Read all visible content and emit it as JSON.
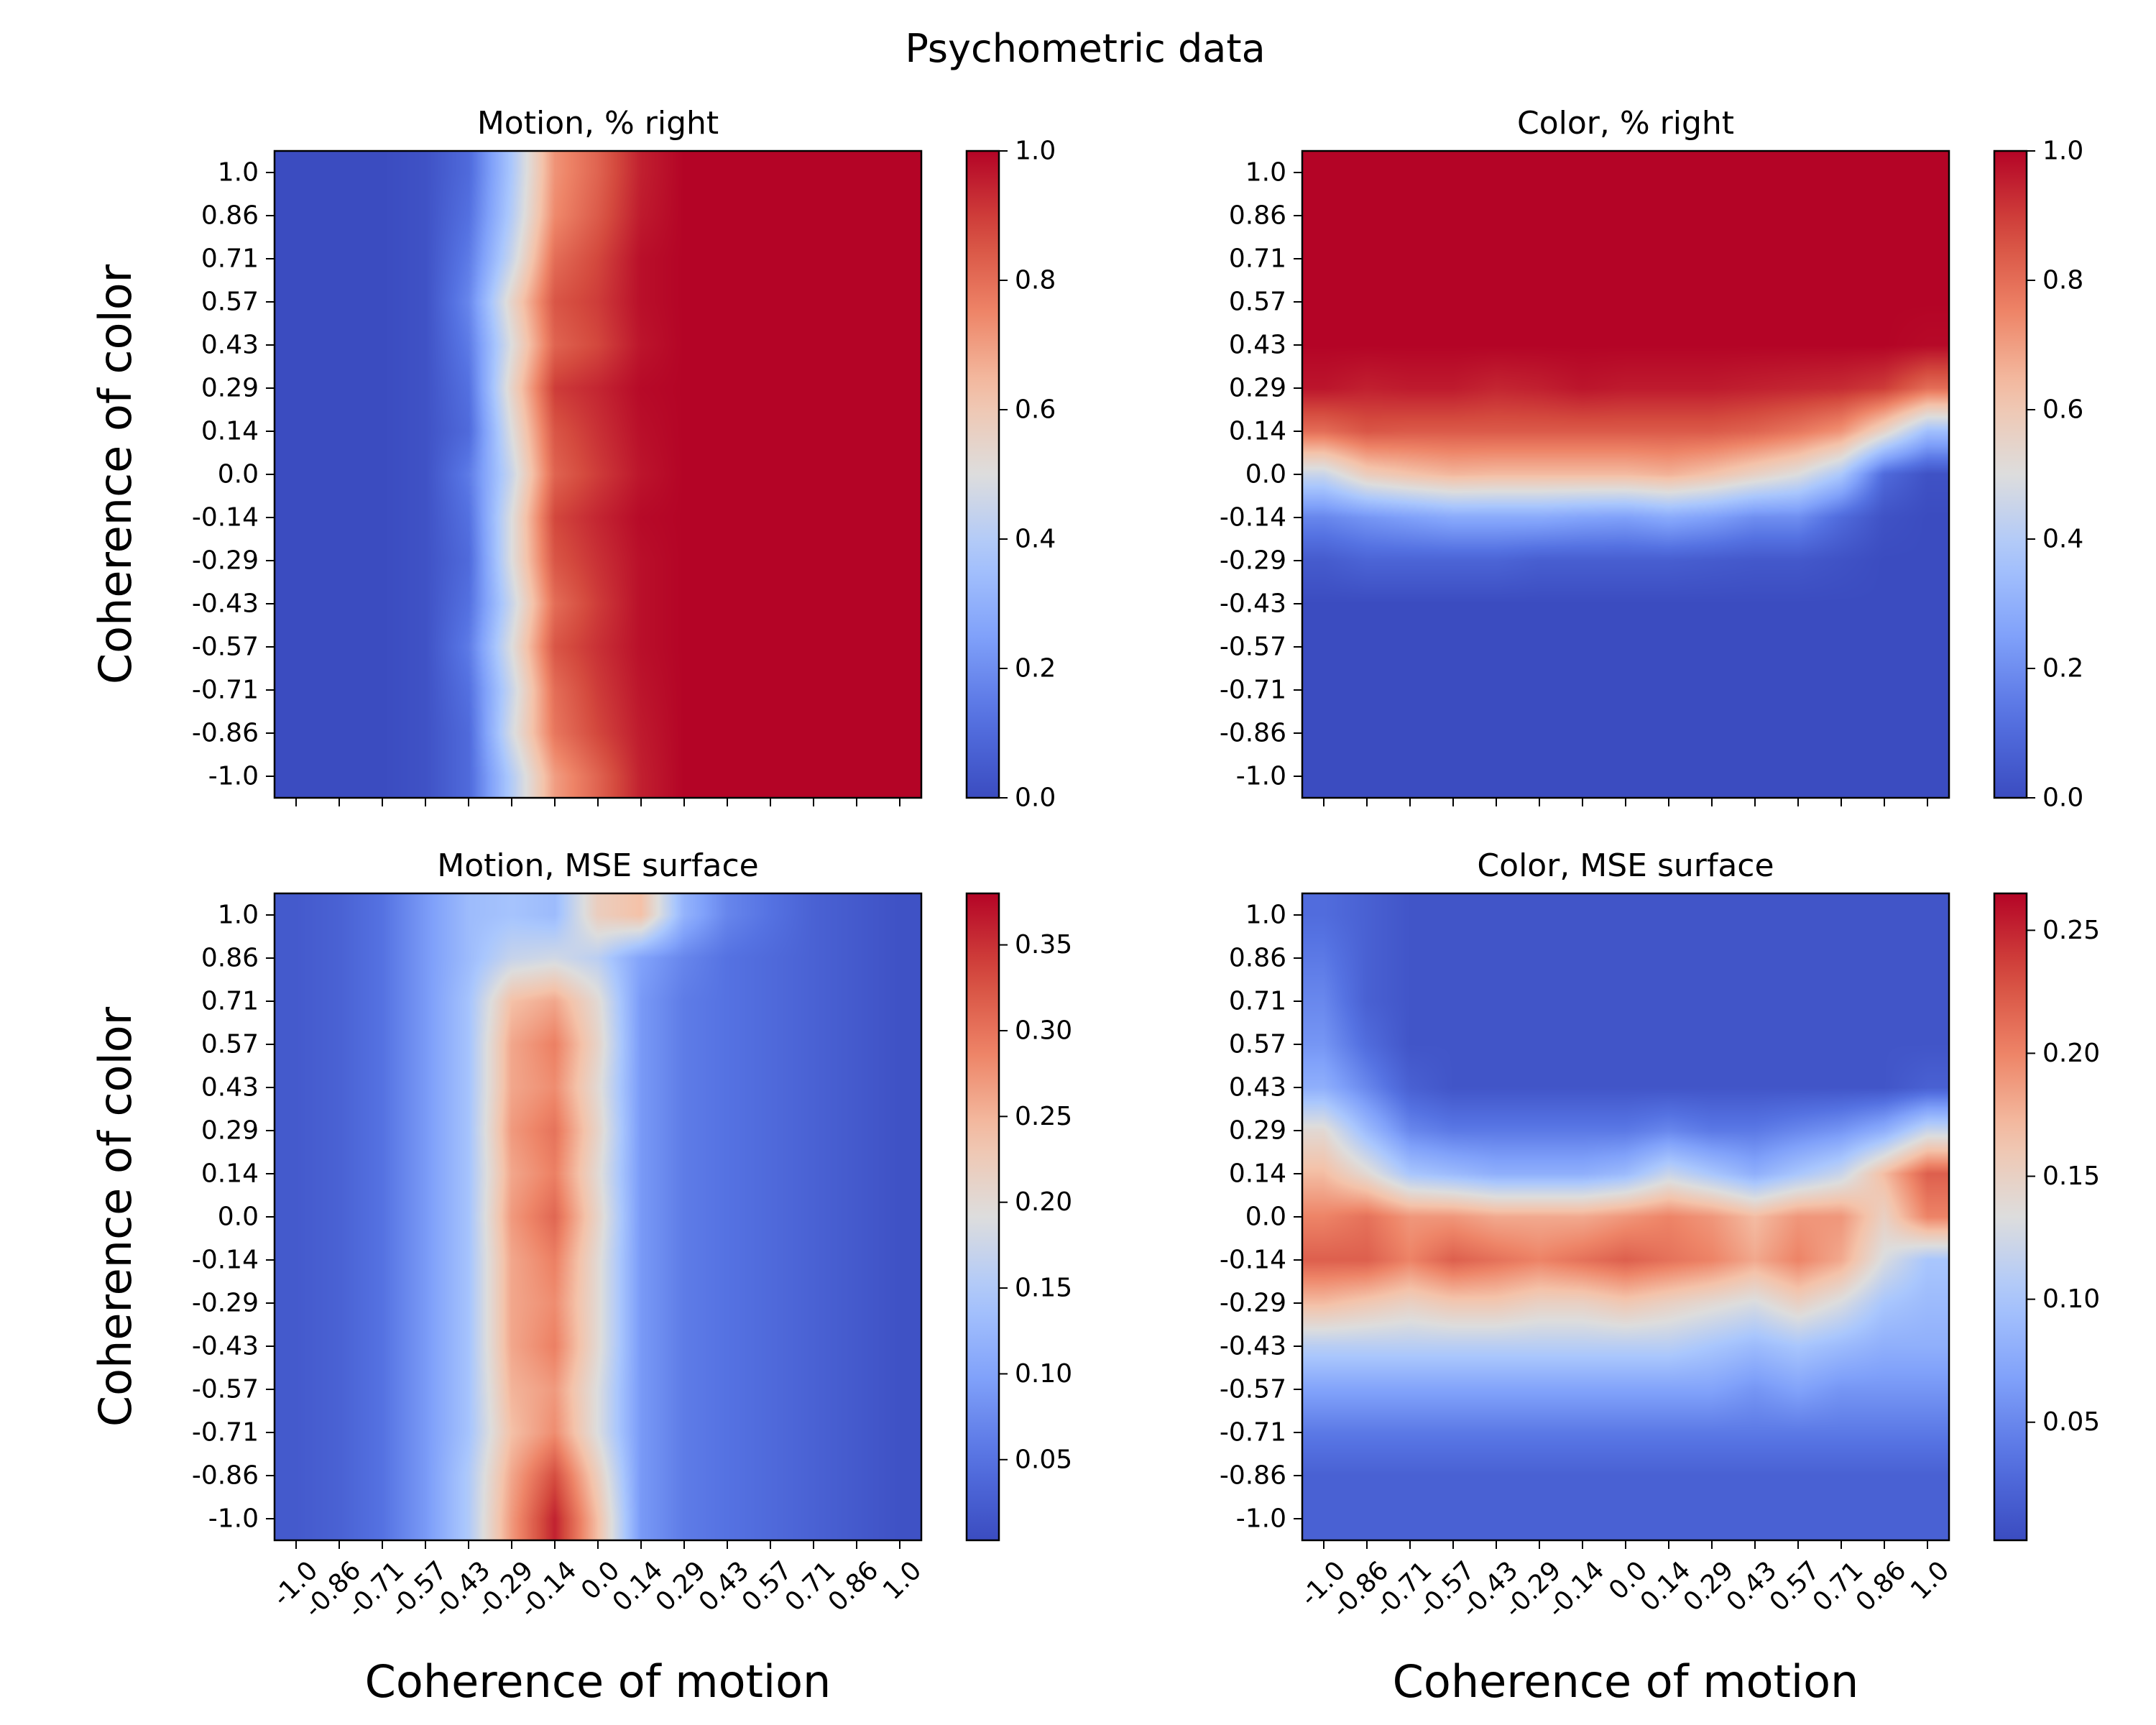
{
  "figure": {
    "title": "Psychometric data"
  },
  "chart_data": [
    {
      "type": "heatmap",
      "panel": "top-left",
      "title": "Motion, % right",
      "xlabel": "",
      "ylabel": "Coherence of color",
      "x_ticks": [
        "-1.0",
        "-0.86",
        "-0.71",
        "-0.57",
        "-0.43",
        "-0.29",
        "-0.14",
        "0.0",
        "0.14",
        "0.29",
        "0.43",
        "0.57",
        "0.71",
        "0.86",
        "1.0"
      ],
      "y_ticks": [
        "1.0",
        "0.86",
        "0.71",
        "0.57",
        "0.43",
        "0.29",
        "0.14",
        "0.0",
        "-0.14",
        "-0.29",
        "-0.43",
        "-0.57",
        "-0.71",
        "-0.86",
        "-1.0"
      ],
      "show_x_ticklabels": false,
      "colorbar": {
        "range": [
          0.0,
          1.0
        ],
        "ticks": [
          "0.0",
          "0.2",
          "0.4",
          "0.6",
          "0.8",
          "1.0"
        ],
        "colormap": "coolwarm"
      },
      "rows": [
        [
          0.0,
          0.0,
          0.0,
          0.02,
          0.1,
          0.38,
          0.72,
          0.82,
          0.95,
          1.0,
          1.0,
          1.0,
          1.0,
          1.0,
          1.0
        ],
        [
          0.0,
          0.0,
          0.0,
          0.02,
          0.12,
          0.4,
          0.74,
          0.84,
          0.96,
          1.0,
          1.0,
          1.0,
          1.0,
          1.0,
          1.0
        ],
        [
          0.0,
          0.0,
          0.0,
          0.02,
          0.15,
          0.45,
          0.8,
          0.88,
          0.98,
          1.0,
          1.0,
          1.0,
          1.0,
          1.0,
          1.0
        ],
        [
          0.0,
          0.0,
          0.0,
          0.02,
          0.18,
          0.55,
          0.85,
          0.9,
          0.98,
          1.0,
          1.0,
          1.0,
          1.0,
          1.0,
          1.0
        ],
        [
          0.0,
          0.0,
          0.0,
          0.02,
          0.15,
          0.5,
          0.82,
          0.88,
          0.97,
          1.0,
          1.0,
          1.0,
          1.0,
          1.0,
          1.0
        ],
        [
          0.0,
          0.0,
          0.0,
          0.02,
          0.12,
          0.55,
          0.9,
          0.94,
          0.99,
          1.0,
          1.0,
          1.0,
          1.0,
          1.0,
          1.0
        ],
        [
          0.0,
          0.0,
          0.0,
          0.02,
          0.1,
          0.5,
          0.85,
          0.92,
          0.98,
          1.0,
          1.0,
          1.0,
          1.0,
          1.0,
          1.0
        ],
        [
          0.0,
          0.0,
          0.0,
          0.02,
          0.15,
          0.45,
          0.82,
          0.9,
          0.97,
          1.0,
          1.0,
          1.0,
          1.0,
          1.0,
          1.0
        ],
        [
          0.0,
          0.0,
          0.0,
          0.02,
          0.12,
          0.5,
          0.88,
          0.94,
          0.99,
          1.0,
          1.0,
          1.0,
          1.0,
          1.0,
          1.0
        ],
        [
          0.0,
          0.0,
          0.0,
          0.02,
          0.1,
          0.5,
          0.85,
          0.92,
          0.98,
          1.0,
          1.0,
          1.0,
          1.0,
          1.0,
          1.0
        ],
        [
          0.0,
          0.0,
          0.0,
          0.02,
          0.12,
          0.45,
          0.8,
          0.9,
          0.98,
          1.0,
          1.0,
          1.0,
          1.0,
          1.0,
          1.0
        ],
        [
          0.0,
          0.0,
          0.0,
          0.02,
          0.15,
          0.5,
          0.85,
          0.92,
          0.98,
          1.0,
          1.0,
          1.0,
          1.0,
          1.0,
          1.0
        ],
        [
          0.0,
          0.0,
          0.0,
          0.02,
          0.12,
          0.45,
          0.8,
          0.9,
          0.97,
          1.0,
          1.0,
          1.0,
          1.0,
          1.0,
          1.0
        ],
        [
          0.0,
          0.0,
          0.0,
          0.02,
          0.1,
          0.48,
          0.78,
          0.88,
          0.96,
          1.0,
          1.0,
          1.0,
          1.0,
          1.0,
          1.0
        ],
        [
          0.0,
          0.0,
          0.0,
          0.02,
          0.1,
          0.4,
          0.7,
          0.82,
          0.95,
          1.0,
          1.0,
          1.0,
          1.0,
          1.0,
          1.0
        ]
      ]
    },
    {
      "type": "heatmap",
      "panel": "top-right",
      "title": "Color, % right",
      "xlabel": "",
      "ylabel": "",
      "x_ticks": [
        "-1.0",
        "-0.86",
        "-0.71",
        "-0.57",
        "-0.43",
        "-0.29",
        "-0.14",
        "0.0",
        "0.14",
        "0.29",
        "0.43",
        "0.57",
        "0.71",
        "0.86",
        "1.0"
      ],
      "y_ticks": [
        "1.0",
        "0.86",
        "0.71",
        "0.57",
        "0.43",
        "0.29",
        "0.14",
        "0.0",
        "-0.14",
        "-0.29",
        "-0.43",
        "-0.57",
        "-0.71",
        "-0.86",
        "-1.0"
      ],
      "show_x_ticklabels": false,
      "colorbar": {
        "range": [
          0.0,
          1.0
        ],
        "ticks": [
          "0.0",
          "0.2",
          "0.4",
          "0.6",
          "0.8",
          "1.0"
        ],
        "colormap": "coolwarm"
      },
      "rows": [
        [
          1.0,
          1.0,
          1.0,
          1.0,
          1.0,
          1.0,
          1.0,
          1.0,
          1.0,
          1.0,
          1.0,
          1.0,
          1.0,
          1.0,
          1.0
        ],
        [
          1.0,
          1.0,
          1.0,
          1.0,
          1.0,
          1.0,
          1.0,
          1.0,
          1.0,
          1.0,
          1.0,
          1.0,
          1.0,
          1.0,
          1.0
        ],
        [
          1.0,
          1.0,
          1.0,
          1.0,
          1.0,
          1.0,
          1.0,
          1.0,
          1.0,
          1.0,
          1.0,
          1.0,
          1.0,
          1.0,
          1.0
        ],
        [
          1.0,
          1.0,
          1.0,
          1.0,
          1.0,
          1.0,
          1.0,
          1.0,
          1.0,
          1.0,
          1.0,
          1.0,
          1.0,
          1.0,
          1.0
        ],
        [
          1.0,
          1.0,
          1.0,
          1.0,
          1.0,
          1.0,
          1.0,
          1.0,
          1.0,
          1.0,
          1.0,
          1.0,
          1.0,
          1.0,
          0.99
        ],
        [
          0.97,
          0.95,
          0.96,
          0.96,
          0.94,
          0.95,
          0.97,
          0.96,
          0.96,
          0.96,
          0.95,
          0.94,
          0.93,
          0.9,
          0.8
        ],
        [
          0.8,
          0.85,
          0.84,
          0.84,
          0.84,
          0.84,
          0.84,
          0.84,
          0.84,
          0.84,
          0.82,
          0.78,
          0.72,
          0.55,
          0.35
        ],
        [
          0.45,
          0.58,
          0.62,
          0.65,
          0.64,
          0.64,
          0.64,
          0.64,
          0.66,
          0.62,
          0.56,
          0.5,
          0.38,
          0.1,
          0.02
        ],
        [
          0.18,
          0.22,
          0.25,
          0.28,
          0.28,
          0.28,
          0.26,
          0.25,
          0.28,
          0.25,
          0.2,
          0.2,
          0.1,
          0.02,
          0.0
        ],
        [
          0.05,
          0.08,
          0.08,
          0.08,
          0.08,
          0.06,
          0.06,
          0.06,
          0.06,
          0.05,
          0.04,
          0.04,
          0.02,
          0.0,
          0.0
        ],
        [
          0.0,
          0.0,
          0.0,
          0.0,
          0.0,
          0.0,
          0.0,
          0.0,
          0.0,
          0.0,
          0.0,
          0.0,
          0.0,
          0.0,
          0.0
        ],
        [
          0.0,
          0.0,
          0.0,
          0.0,
          0.0,
          0.0,
          0.0,
          0.0,
          0.0,
          0.0,
          0.0,
          0.0,
          0.0,
          0.0,
          0.0
        ],
        [
          0.0,
          0.0,
          0.0,
          0.0,
          0.0,
          0.0,
          0.0,
          0.0,
          0.0,
          0.0,
          0.0,
          0.0,
          0.0,
          0.0,
          0.0
        ],
        [
          0.0,
          0.0,
          0.0,
          0.0,
          0.0,
          0.0,
          0.0,
          0.0,
          0.0,
          0.0,
          0.0,
          0.0,
          0.0,
          0.0,
          0.0
        ],
        [
          0.0,
          0.0,
          0.0,
          0.0,
          0.0,
          0.0,
          0.0,
          0.0,
          0.0,
          0.0,
          0.0,
          0.0,
          0.0,
          0.0,
          0.0
        ]
      ]
    },
    {
      "type": "heatmap",
      "panel": "bottom-left",
      "title": "Motion, MSE surface",
      "xlabel": "Coherence of motion",
      "ylabel": "Coherence of color",
      "x_ticks": [
        "-1.0",
        "-0.86",
        "-0.71",
        "-0.57",
        "-0.43",
        "-0.29",
        "-0.14",
        "0.0",
        "0.14",
        "0.29",
        "0.43",
        "0.57",
        "0.71",
        "0.86",
        "1.0"
      ],
      "y_ticks": [
        "1.0",
        "0.86",
        "0.71",
        "0.57",
        "0.43",
        "0.29",
        "0.14",
        "0.0",
        "-0.14",
        "-0.29",
        "-0.43",
        "-0.57",
        "-0.71",
        "-0.86",
        "-1.0"
      ],
      "show_x_ticklabels": true,
      "colorbar": {
        "range": [
          0.003,
          0.38
        ],
        "ticks": [
          "0.05",
          "0.10",
          "0.15",
          "0.20",
          "0.25",
          "0.30",
          "0.35"
        ],
        "colormap": "coolwarm"
      },
      "rows": [
        [
          0.02,
          0.03,
          0.05,
          0.09,
          0.13,
          0.14,
          0.13,
          0.22,
          0.24,
          0.12,
          0.07,
          0.05,
          0.03,
          0.02,
          0.01
        ],
        [
          0.02,
          0.03,
          0.05,
          0.09,
          0.13,
          0.17,
          0.18,
          0.16,
          0.1,
          0.07,
          0.05,
          0.04,
          0.03,
          0.02,
          0.01
        ],
        [
          0.02,
          0.03,
          0.05,
          0.09,
          0.14,
          0.24,
          0.26,
          0.2,
          0.09,
          0.06,
          0.05,
          0.04,
          0.03,
          0.02,
          0.01
        ],
        [
          0.02,
          0.03,
          0.05,
          0.09,
          0.14,
          0.26,
          0.29,
          0.21,
          0.09,
          0.06,
          0.05,
          0.04,
          0.03,
          0.02,
          0.01
        ],
        [
          0.02,
          0.03,
          0.05,
          0.09,
          0.14,
          0.26,
          0.28,
          0.2,
          0.09,
          0.06,
          0.05,
          0.04,
          0.03,
          0.02,
          0.01
        ],
        [
          0.02,
          0.03,
          0.05,
          0.09,
          0.14,
          0.27,
          0.3,
          0.21,
          0.09,
          0.06,
          0.05,
          0.04,
          0.03,
          0.02,
          0.01
        ],
        [
          0.02,
          0.03,
          0.05,
          0.09,
          0.14,
          0.26,
          0.29,
          0.2,
          0.09,
          0.06,
          0.05,
          0.04,
          0.03,
          0.02,
          0.01
        ],
        [
          0.02,
          0.03,
          0.05,
          0.09,
          0.14,
          0.27,
          0.31,
          0.21,
          0.09,
          0.06,
          0.05,
          0.04,
          0.03,
          0.02,
          0.01
        ],
        [
          0.02,
          0.03,
          0.05,
          0.09,
          0.14,
          0.26,
          0.29,
          0.2,
          0.09,
          0.06,
          0.05,
          0.04,
          0.03,
          0.02,
          0.01
        ],
        [
          0.02,
          0.03,
          0.05,
          0.09,
          0.14,
          0.26,
          0.28,
          0.2,
          0.09,
          0.06,
          0.05,
          0.04,
          0.03,
          0.02,
          0.01
        ],
        [
          0.02,
          0.03,
          0.05,
          0.09,
          0.14,
          0.26,
          0.29,
          0.2,
          0.09,
          0.06,
          0.05,
          0.04,
          0.03,
          0.02,
          0.01
        ],
        [
          0.02,
          0.03,
          0.05,
          0.09,
          0.14,
          0.25,
          0.27,
          0.19,
          0.09,
          0.06,
          0.05,
          0.04,
          0.03,
          0.02,
          0.01
        ],
        [
          0.02,
          0.03,
          0.05,
          0.09,
          0.14,
          0.24,
          0.28,
          0.19,
          0.09,
          0.06,
          0.05,
          0.04,
          0.03,
          0.02,
          0.01
        ],
        [
          0.02,
          0.03,
          0.05,
          0.09,
          0.15,
          0.26,
          0.33,
          0.22,
          0.09,
          0.06,
          0.05,
          0.04,
          0.03,
          0.02,
          0.01
        ],
        [
          0.02,
          0.03,
          0.05,
          0.09,
          0.15,
          0.27,
          0.36,
          0.24,
          0.09,
          0.06,
          0.05,
          0.04,
          0.03,
          0.02,
          0.01
        ]
      ]
    },
    {
      "type": "heatmap",
      "panel": "bottom-right",
      "title": "Color, MSE surface",
      "xlabel": "Coherence of motion",
      "ylabel": "",
      "x_ticks": [
        "-1.0",
        "-0.86",
        "-0.71",
        "-0.57",
        "-0.43",
        "-0.29",
        "-0.14",
        "0.0",
        "0.14",
        "0.29",
        "0.43",
        "0.57",
        "0.71",
        "0.86",
        "1.0"
      ],
      "y_ticks": [
        "1.0",
        "0.86",
        "0.71",
        "0.57",
        "0.43",
        "0.29",
        "0.14",
        "0.0",
        "-0.14",
        "-0.29",
        "-0.43",
        "-0.57",
        "-0.71",
        "-0.86",
        "-1.0"
      ],
      "show_x_ticklabels": true,
      "colorbar": {
        "range": [
          0.002,
          0.265
        ],
        "ticks": [
          "0.05",
          "0.10",
          "0.15",
          "0.20",
          "0.25"
        ],
        "colormap": "coolwarm"
      },
      "rows": [
        [
          0.03,
          0.02,
          0.01,
          0.01,
          0.01,
          0.01,
          0.01,
          0.01,
          0.01,
          0.01,
          0.01,
          0.01,
          0.01,
          0.01,
          0.01
        ],
        [
          0.04,
          0.02,
          0.01,
          0.01,
          0.01,
          0.01,
          0.01,
          0.01,
          0.01,
          0.01,
          0.01,
          0.01,
          0.01,
          0.01,
          0.01
        ],
        [
          0.05,
          0.02,
          0.01,
          0.01,
          0.01,
          0.01,
          0.01,
          0.01,
          0.01,
          0.01,
          0.01,
          0.01,
          0.01,
          0.01,
          0.01
        ],
        [
          0.06,
          0.03,
          0.01,
          0.01,
          0.01,
          0.01,
          0.01,
          0.01,
          0.01,
          0.01,
          0.01,
          0.01,
          0.01,
          0.01,
          0.01
        ],
        [
          0.08,
          0.05,
          0.02,
          0.01,
          0.01,
          0.01,
          0.01,
          0.01,
          0.01,
          0.01,
          0.01,
          0.01,
          0.01,
          0.01,
          0.02
        ],
        [
          0.14,
          0.09,
          0.05,
          0.04,
          0.04,
          0.04,
          0.04,
          0.04,
          0.05,
          0.04,
          0.04,
          0.05,
          0.06,
          0.08,
          0.12
        ],
        [
          0.17,
          0.14,
          0.1,
          0.09,
          0.08,
          0.08,
          0.08,
          0.09,
          0.12,
          0.1,
          0.08,
          0.1,
          0.12,
          0.17,
          0.22
        ],
        [
          0.2,
          0.21,
          0.19,
          0.19,
          0.18,
          0.18,
          0.18,
          0.19,
          0.2,
          0.19,
          0.17,
          0.19,
          0.19,
          0.15,
          0.2
        ],
        [
          0.22,
          0.22,
          0.2,
          0.22,
          0.21,
          0.2,
          0.21,
          0.22,
          0.21,
          0.2,
          0.18,
          0.2,
          0.18,
          0.13,
          0.1
        ],
        [
          0.17,
          0.16,
          0.15,
          0.16,
          0.16,
          0.15,
          0.15,
          0.16,
          0.15,
          0.14,
          0.13,
          0.15,
          0.13,
          0.1,
          0.09
        ],
        [
          0.11,
          0.11,
          0.11,
          0.11,
          0.11,
          0.11,
          0.11,
          0.11,
          0.11,
          0.1,
          0.09,
          0.1,
          0.09,
          0.08,
          0.08
        ],
        [
          0.07,
          0.07,
          0.07,
          0.07,
          0.07,
          0.07,
          0.07,
          0.07,
          0.07,
          0.07,
          0.06,
          0.07,
          0.06,
          0.06,
          0.06
        ],
        [
          0.04,
          0.04,
          0.04,
          0.04,
          0.04,
          0.04,
          0.04,
          0.04,
          0.04,
          0.04,
          0.04,
          0.04,
          0.04,
          0.04,
          0.04
        ],
        [
          0.02,
          0.02,
          0.02,
          0.02,
          0.02,
          0.02,
          0.02,
          0.02,
          0.02,
          0.02,
          0.02,
          0.02,
          0.02,
          0.02,
          0.02
        ],
        [
          0.02,
          0.02,
          0.02,
          0.02,
          0.02,
          0.02,
          0.02,
          0.02,
          0.02,
          0.02,
          0.02,
          0.02,
          0.02,
          0.02,
          0.02
        ]
      ]
    }
  ]
}
